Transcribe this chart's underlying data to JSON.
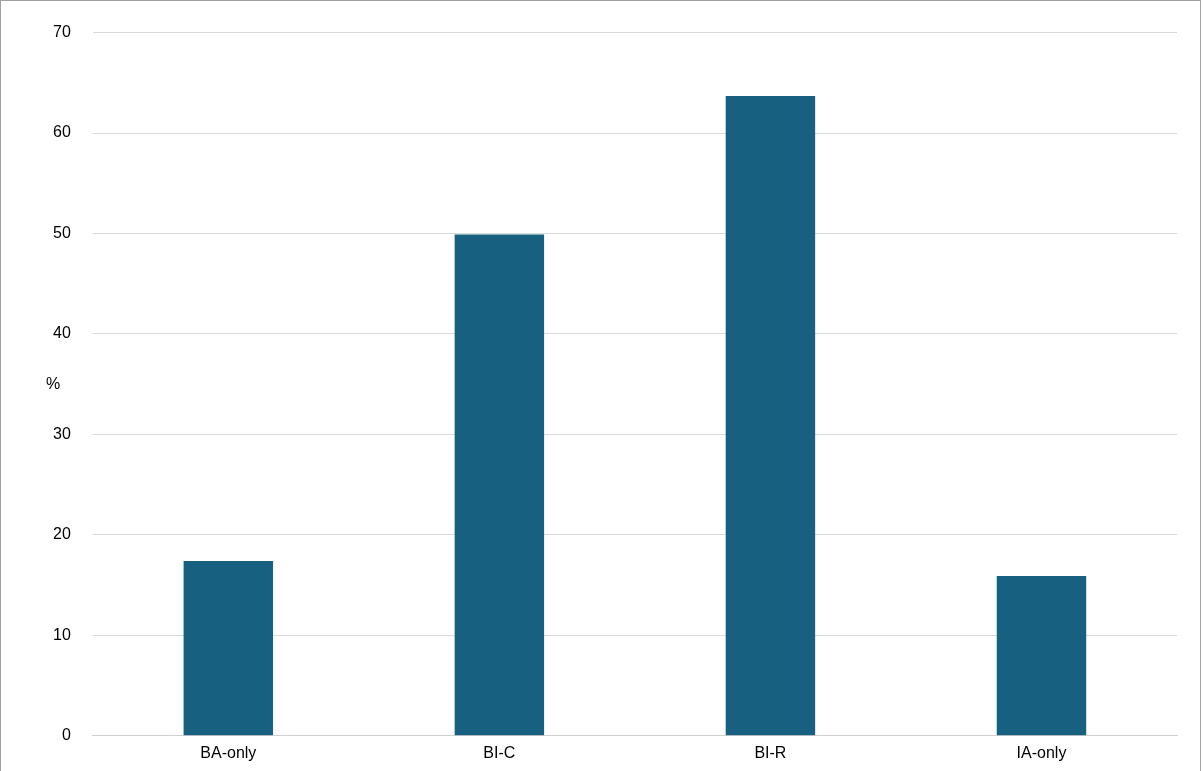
{
  "chart_data": {
    "type": "bar",
    "ylabel": "%",
    "categories": [
      "BA-only",
      "BI-C",
      "BI-R",
      "IA-only"
    ],
    "values": [
      17.4,
      49.9,
      63.7,
      15.9
    ],
    "color": "#17607f",
    "ylim": [
      0,
      70
    ],
    "yticks": [
      0,
      10,
      20,
      30,
      40,
      50,
      60,
      70
    ],
    "grid": "y",
    "legend": false
  }
}
